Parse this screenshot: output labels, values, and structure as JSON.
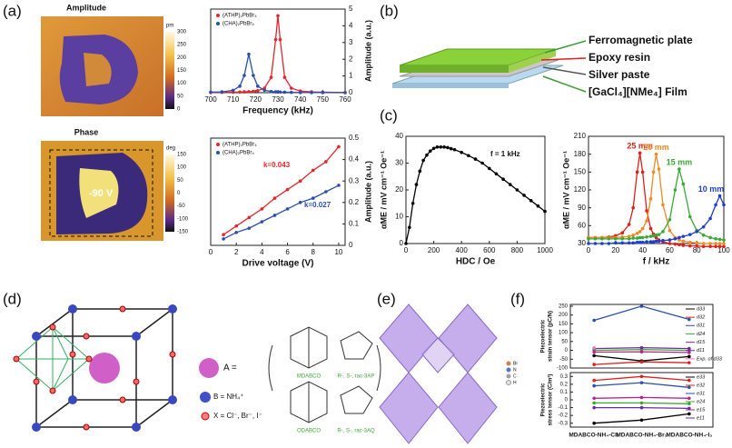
{
  "panels": {
    "a": {
      "label": "(a)",
      "amplitude_title": "Amplitude",
      "phase_title": "Phase",
      "amplitude_unit": "pm",
      "amplitude_scale": [
        300,
        250,
        200,
        150,
        100,
        50,
        0
      ],
      "phase_unit": "deg",
      "phase_scale": [
        150,
        100,
        50,
        0,
        -50,
        -100,
        -150
      ],
      "voltage": "-90 V"
    },
    "b": {
      "label": "(b)",
      "layers": [
        "Ferromagnetic plate",
        "Epoxy resin",
        "Silver paste",
        "[GaCl₄][NMe₄] Film"
      ]
    },
    "c": {
      "label": "(c)"
    },
    "d": {
      "label": "(d)",
      "a_site": "A =",
      "b_site": "B = NH₄⁺",
      "x_site": "X = Cl⁻, Br⁻, I⁻",
      "molecules": [
        "MDABCO",
        "R-, S-, rac-3AP",
        "ODABCO",
        "R-, S-, rac-3AQ"
      ]
    },
    "e": {
      "label": "(e)",
      "legend": [
        "Br",
        "N",
        "C",
        "H"
      ]
    },
    "f": {
      "label": "(f)"
    }
  },
  "chart_data": [
    {
      "type": "line",
      "xlabel": "Frequency (kHz)",
      "ylabel": "Amplitude (a.u.)",
      "y_axis_side": "right",
      "legend": "upper left",
      "x": [
        700,
        705,
        710,
        713,
        715,
        717,
        719,
        721,
        724,
        727,
        729,
        730,
        731,
        733,
        736,
        740,
        745,
        750,
        760
      ],
      "xlim": [
        700,
        760
      ],
      "xticks": [
        700,
        710,
        720,
        730,
        740,
        750,
        760
      ],
      "ylim": [
        0,
        5
      ],
      "yticks": [
        0,
        1,
        2,
        3,
        4,
        5
      ],
      "series": [
        {
          "name": "(ATHP)₂PbBr₄",
          "color": "#e8262a",
          "values": [
            0.01,
            0.02,
            0.03,
            0.04,
            0.05,
            0.06,
            0.08,
            0.12,
            0.27,
            0.92,
            3.18,
            4.6,
            3.18,
            0.92,
            0.27,
            0.1,
            0.05,
            0.03,
            0.01
          ]
        },
        {
          "name": "(CHA)₂PbBr₄",
          "color": "#2b4fb0",
          "values": [
            0.03,
            0.05,
            0.14,
            0.39,
            1.03,
            2.3,
            1.03,
            0.39,
            0.14,
            0.07,
            0.05,
            0.04,
            0.04,
            0.03,
            0.02,
            0.01,
            0.01,
            0.01,
            0
          ]
        }
      ]
    },
    {
      "type": "line",
      "xlabel": "Drive voltage (V)",
      "ylabel": "Amplitude (a.u.)",
      "y_axis_side": "right",
      "legend": "upper left",
      "x": [
        1,
        2,
        3,
        4,
        5,
        6,
        7,
        8,
        9,
        10
      ],
      "xlim": [
        0,
        10.5
      ],
      "xticks": [
        0,
        2,
        4,
        6,
        8,
        10
      ],
      "ylim": [
        0,
        0.5
      ],
      "yticks": [
        0,
        0.1,
        0.2,
        0.3,
        0.4,
        0.5
      ],
      "series": [
        {
          "name": "(ATHP)₂PbBr₄",
          "color": "#e8262a",
          "values": [
            0.05,
            0.09,
            0.13,
            0.17,
            0.22,
            0.26,
            0.3,
            0.35,
            0.39,
            0.46
          ]
        },
        {
          "name": "(CHA)₂PbBr₄",
          "color": "#2b4fb0",
          "values": [
            0.03,
            0.06,
            0.08,
            0.11,
            0.14,
            0.17,
            0.2,
            0.22,
            0.25,
            0.28
          ]
        }
      ],
      "annotations": [
        "k=0.043",
        "k=0.027"
      ]
    },
    {
      "type": "line",
      "xlabel": "HDC / Oe",
      "ylabel": "αME / mV cm⁻¹ Oe⁻¹",
      "y_axis_side": "left",
      "x": [
        0,
        25,
        50,
        75,
        100,
        125,
        150,
        175,
        200,
        225,
        250,
        275,
        300,
        325,
        350,
        400,
        450,
        500,
        550,
        600,
        650,
        700,
        750,
        800,
        850,
        900,
        950,
        1000
      ],
      "xlim": [
        0,
        1000
      ],
      "xticks": [
        0,
        200,
        400,
        600,
        800,
        1000
      ],
      "ylim": [
        0,
        40
      ],
      "yticks": [
        0,
        10,
        20,
        30,
        40
      ],
      "series": [
        {
          "color": "#000000",
          "values": [
            0,
            6,
            15,
            22,
            27,
            31,
            33,
            34.5,
            35.5,
            36,
            36,
            36,
            35.8,
            35.4,
            35,
            34,
            32.8,
            31.5,
            30,
            28,
            26,
            24,
            22,
            20,
            18,
            16,
            14,
            12
          ]
        }
      ],
      "annotations": [
        "f = 1 kHz"
      ]
    },
    {
      "type": "line",
      "xlabel": "f / kHz",
      "ylabel": "αME / mV cm⁻¹ Oe⁻¹",
      "y_axis_side": "left",
      "legend": "at peaks",
      "x": [
        0,
        5,
        10,
        15,
        20,
        25,
        30,
        33,
        36,
        38,
        40,
        43,
        46,
        48,
        50,
        52,
        55,
        60,
        64,
        67,
        70,
        75,
        80,
        85,
        90,
        94,
        97,
        100
      ],
      "xlim": [
        0,
        100
      ],
      "xticks": [
        0,
        20,
        40,
        60,
        80,
        100
      ],
      "ylim": [
        30,
        210
      ],
      "yticks": [
        30,
        60,
        90,
        120,
        150,
        180,
        210
      ],
      "series": [
        {
          "name": "25 mm",
          "color": "#e0201b",
          "values": [
            40,
            40,
            40,
            41,
            43,
            48,
            62,
            90,
            150,
            182,
            150,
            85,
            55,
            46,
            40,
            36,
            33,
            30,
            29,
            28,
            27,
            26,
            26,
            25,
            25,
            25,
            25,
            25
          ]
        },
        {
          "name": "20 mm",
          "color": "#f08a24",
          "values": [
            40,
            40,
            40,
            40,
            40,
            41,
            42,
            44,
            47,
            50,
            55,
            68,
            105,
            150,
            180,
            155,
            95,
            52,
            40,
            36,
            34,
            32,
            31,
            30,
            30,
            30,
            30,
            30
          ]
        },
        {
          "name": "15 mm",
          "color": "#3aa935",
          "values": [
            38,
            38,
            38,
            38,
            38,
            38,
            38,
            39,
            39,
            40,
            40,
            41,
            42,
            43,
            44,
            45,
            50,
            70,
            120,
            155,
            130,
            75,
            52,
            44,
            40,
            38,
            37,
            36
          ]
        },
        {
          "name": "10 mm",
          "color": "#1f3fd0",
          "values": [
            30,
            30,
            30,
            30,
            31,
            31,
            31,
            31,
            32,
            32,
            32,
            33,
            33,
            33,
            34,
            34,
            35,
            36,
            38,
            40,
            42,
            45,
            50,
            58,
            72,
            95,
            110,
            95
          ]
        }
      ]
    },
    {
      "type": "line",
      "ylabel": [
        "Piezoelectric",
        "strain tensor (pC/N)"
      ],
      "y_axis_side": "left",
      "legend": "right",
      "ylim": [
        -100,
        260
      ],
      "yticks": [
        -100,
        -50,
        0,
        50,
        100,
        150,
        200,
        250
      ],
      "series": [
        {
          "name": "d33",
          "color": "#000000",
          "values": [
            -30,
            -60,
            -35
          ]
        },
        {
          "name": "d32",
          "color": "#e0201b",
          "values": [
            -80,
            -65,
            -70
          ]
        },
        {
          "name": "d31",
          "color": "#2b4fb0",
          "values": [
            170,
            250,
            175
          ]
        },
        {
          "name": "d24",
          "color": "#3aa935",
          "values": [
            0,
            5,
            0
          ]
        },
        {
          "name": "d15",
          "color": "#c0208a",
          "values": [
            -10,
            -8,
            -12
          ]
        },
        {
          "name": "d11",
          "color": "#6a2ca0",
          "values": [
            10,
            15,
            10
          ]
        },
        {
          "name": "Exp. of d33",
          "color": "#f07cb0",
          "values": [
            14,
            null,
            null
          ]
        }
      ]
    },
    {
      "type": "line",
      "ylabel": [
        "Piezoelectric",
        "stress tensor (C/m²)"
      ],
      "y_axis_side": "left",
      "legend": "right",
      "categories": [
        "MDABCO-NH₄-Cl₃",
        "MDABCO-NH₄-Br₃",
        "MDABCO-NH₄-I₃"
      ],
      "ylim": [
        -0.35,
        0.35
      ],
      "yticks": [
        -0.3,
        -0.2,
        -0.1,
        0,
        0.1,
        0.2,
        0.3
      ],
      "series": [
        {
          "name": "e33",
          "color": "#000000",
          "values": [
            -0.3,
            -0.26,
            -0.18
          ]
        },
        {
          "name": "e32",
          "color": "#e0201b",
          "values": [
            0.25,
            0.3,
            0.25
          ]
        },
        {
          "name": "e31",
          "color": "#2b4fb0",
          "values": [
            0.18,
            0.22,
            0.16
          ]
        },
        {
          "name": "e24",
          "color": "#3aa935",
          "values": [
            -0.04,
            -0.04,
            -0.05
          ]
        },
        {
          "name": "e15",
          "color": "#c0208a",
          "values": [
            0.02,
            0.03,
            0.02
          ]
        },
        {
          "name": "e11",
          "color": "#6a2ca0",
          "values": [
            -0.1,
            -0.1,
            -0.11
          ]
        }
      ]
    }
  ]
}
